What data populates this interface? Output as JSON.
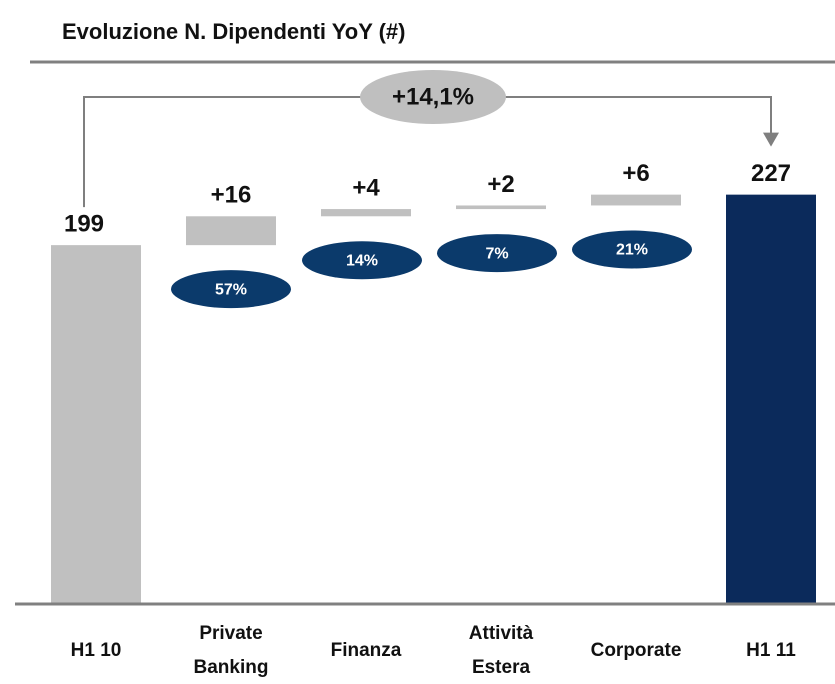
{
  "chart_data": {
    "type": "waterfall",
    "title": "Evoluzione N. Dipendenti YoY (#)",
    "categories": [
      "H1 10",
      "Private Banking",
      "Finanza",
      "Attività Estera",
      "Corporate",
      "H1 11"
    ],
    "values": [
      199,
      16,
      4,
      2,
      6,
      227
    ],
    "value_labels": [
      "199",
      "+16",
      "+4",
      "+2",
      "+6",
      "227"
    ],
    "colors": [
      "#c0c0c0",
      "#c0c0c0",
      "#c0c0c0",
      "#c0c0c0",
      "#c0c0c0",
      "#0b2a5b"
    ],
    "shares": [
      null,
      57,
      14,
      7,
      21,
      null
    ],
    "share_labels": [
      null,
      "57%",
      "14%",
      "7%",
      "21%",
      null
    ],
    "share_color": "#0b3a6b",
    "annotation": "+14,1%",
    "ylim": [
      0,
      300
    ]
  }
}
